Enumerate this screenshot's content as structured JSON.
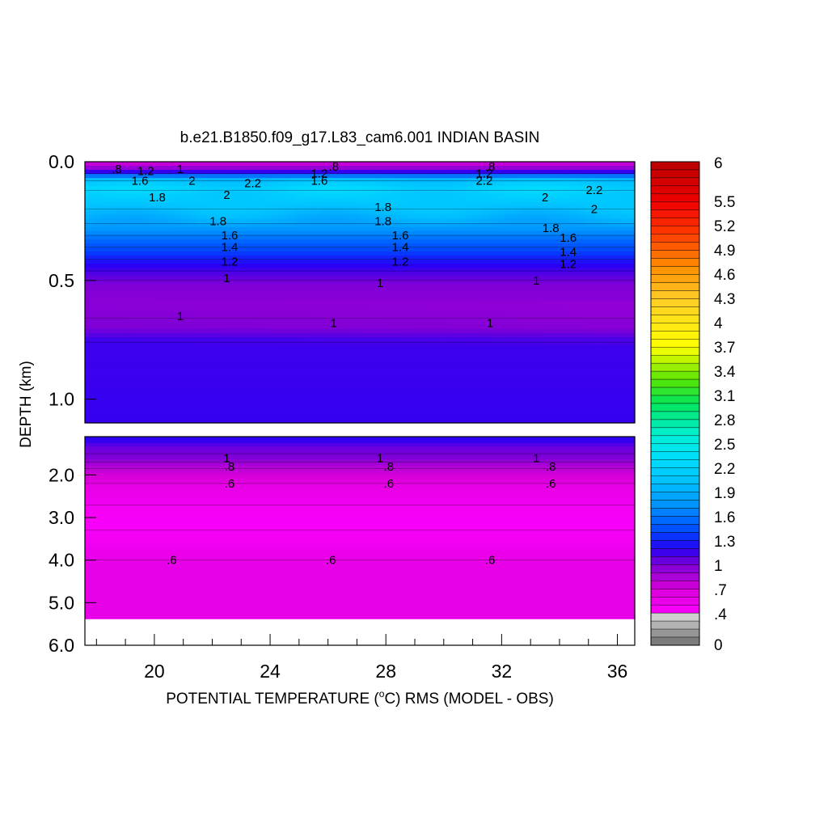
{
  "chart_data": {
    "type": "heatmap",
    "title": "b.e21.B1850.f09_g17.L83_cam6.001 INDIAN BASIN",
    "xlabel_main": "POTENTIAL TEMPERATURE (",
    "xlabel_sup": "o",
    "xlabel_tail": "C) RMS (MODEL - OBS)",
    "ylabel": "DEPTH (km)",
    "x_range": [
      17.6,
      36.6
    ],
    "x_ticks": [
      "20",
      "24",
      "28",
      "32",
      "36"
    ],
    "upper_panel": {
      "depth_range": [
        0.0,
        1.1
      ],
      "y_ticks": [
        "0.0",
        "0.5",
        "1.0"
      ]
    },
    "lower_panel": {
      "depth_range": [
        1.1,
        6.0
      ],
      "y_ticks": [
        "2.0",
        "3.0",
        "4.0",
        "5.0",
        "6.0"
      ]
    },
    "colorbar": {
      "range": [
        0,
        6
      ],
      "labels": [
        "6",
        "5.5",
        "5.2",
        "4.9",
        "4.6",
        "4.3",
        "4",
        "3.7",
        "3.4",
        "3.1",
        "2.8",
        "2.5",
        "2.2",
        "1.9",
        "1.6",
        "1.3",
        "1",
        ".7",
        ".4",
        "0"
      ]
    },
    "contour_labels": [
      {
        "t": ".8",
        "x": 18.7,
        "d": 0.03
      },
      {
        "t": "1.2",
        "x": 19.7,
        "d": 0.04
      },
      {
        "t": "1.6",
        "x": 19.5,
        "d": 0.08
      },
      {
        "t": "1",
        "x": 20.9,
        "d": 0.03
      },
      {
        "t": "2",
        "x": 21.3,
        "d": 0.08
      },
      {
        "t": "2.2",
        "x": 23.4,
        "d": 0.09
      },
      {
        "t": "2",
        "x": 22.5,
        "d": 0.14
      },
      {
        "t": "1.8",
        "x": 20.1,
        "d": 0.15
      },
      {
        "t": ".8",
        "x": 26.2,
        "d": 0.02
      },
      {
        "t": "1.2",
        "x": 25.7,
        "d": 0.05
      },
      {
        "t": "1.6",
        "x": 25.7,
        "d": 0.08
      },
      {
        "t": ".8",
        "x": 31.6,
        "d": 0.02
      },
      {
        "t": "1.2",
        "x": 31.4,
        "d": 0.05
      },
      {
        "t": "2.2",
        "x": 31.4,
        "d": 0.08
      },
      {
        "t": "2",
        "x": 33.5,
        "d": 0.15
      },
      {
        "t": "2.2",
        "x": 35.2,
        "d": 0.12
      },
      {
        "t": "2",
        "x": 35.2,
        "d": 0.2
      },
      {
        "t": "1.8",
        "x": 27.9,
        "d": 0.19
      },
      {
        "t": "1.8",
        "x": 22.2,
        "d": 0.25
      },
      {
        "t": "1.8",
        "x": 27.9,
        "d": 0.25
      },
      {
        "t": "1.8",
        "x": 33.7,
        "d": 0.28
      },
      {
        "t": "1.6",
        "x": 22.6,
        "d": 0.31
      },
      {
        "t": "1.6",
        "x": 28.5,
        "d": 0.31
      },
      {
        "t": "1.6",
        "x": 34.3,
        "d": 0.32
      },
      {
        "t": "1.4",
        "x": 22.6,
        "d": 0.36
      },
      {
        "t": "1.4",
        "x": 28.5,
        "d": 0.36
      },
      {
        "t": "1.4",
        "x": 34.3,
        "d": 0.38
      },
      {
        "t": "1.2",
        "x": 22.6,
        "d": 0.42
      },
      {
        "t": "1.2",
        "x": 28.5,
        "d": 0.42
      },
      {
        "t": "1.2",
        "x": 34.3,
        "d": 0.43
      },
      {
        "t": "1",
        "x": 22.5,
        "d": 0.49
      },
      {
        "t": "1",
        "x": 27.8,
        "d": 0.51
      },
      {
        "t": "1",
        "x": 33.2,
        "d": 0.5
      },
      {
        "t": "1",
        "x": 20.9,
        "d": 0.65
      },
      {
        "t": "1",
        "x": 26.2,
        "d": 0.68
      },
      {
        "t": "1",
        "x": 31.6,
        "d": 0.68
      },
      {
        "t": "1",
        "x": 22.5,
        "d": 1.6
      },
      {
        "t": "1",
        "x": 27.8,
        "d": 1.6
      },
      {
        "t": "1",
        "x": 33.2,
        "d": 1.6
      },
      {
        "t": ".8",
        "x": 22.6,
        "d": 1.8
      },
      {
        "t": ".8",
        "x": 28.1,
        "d": 1.8
      },
      {
        "t": ".8",
        "x": 33.7,
        "d": 1.8
      },
      {
        "t": ".6",
        "x": 22.6,
        "d": 2.2
      },
      {
        "t": ".6",
        "x": 28.1,
        "d": 2.2
      },
      {
        "t": ".6",
        "x": 33.7,
        "d": 2.2
      },
      {
        "t": ".6",
        "x": 20.6,
        "d": 4.0
      },
      {
        "t": ".6",
        "x": 26.1,
        "d": 4.0
      },
      {
        "t": ".6",
        "x": 31.6,
        "d": 4.0
      }
    ]
  }
}
